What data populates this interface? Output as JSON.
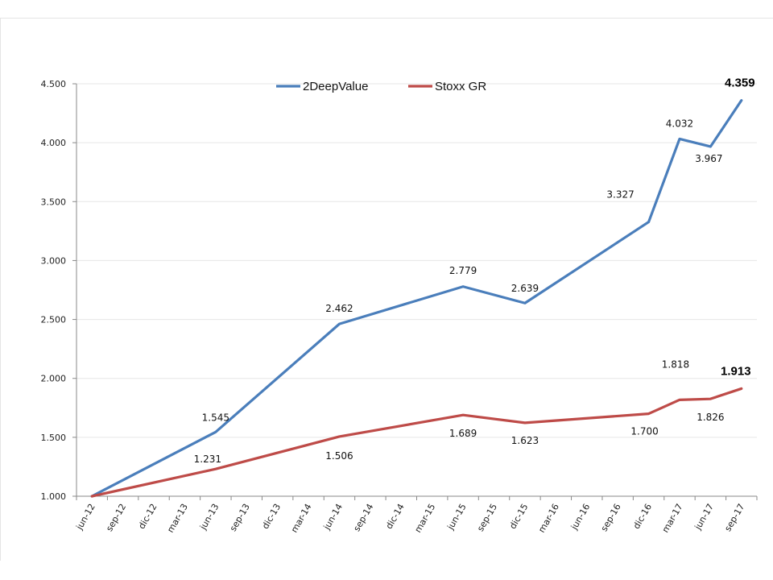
{
  "chart_data": {
    "type": "line",
    "x": [
      "jun-12",
      "sep-12",
      "dic-12",
      "mar-13",
      "jun-13",
      "sep-13",
      "dic-13",
      "mar-14",
      "jun-14",
      "sep-14",
      "dic-14",
      "mar-15",
      "jun-15",
      "sep-15",
      "dic-15",
      "mar-16",
      "jun-16",
      "sep-16",
      "dic-16",
      "mar-17",
      "jun-17",
      "sep-17"
    ],
    "ylim": [
      1.0,
      4.5
    ],
    "yticks": [
      1.0,
      1.5,
      2.0,
      2.5,
      3.0,
      3.5,
      4.0,
      4.5
    ],
    "ytick_labels": [
      "1.000",
      "1.500",
      "2.000",
      "2.500",
      "3.000",
      "3.500",
      "4.000",
      "4.500"
    ],
    "grid": true,
    "legend_position": "top-center",
    "series": [
      {
        "name": "2DeepValue",
        "color": "#4a7ebb",
        "points": [
          {
            "x": "jun-12",
            "y": 1.0
          },
          {
            "x": "jun-13",
            "y": 1.545,
            "label": "1.545"
          },
          {
            "x": "jun-14",
            "y": 2.462,
            "label": "2.462"
          },
          {
            "x": "jun-15",
            "y": 2.779,
            "label": "2.779"
          },
          {
            "x": "dic-15",
            "y": 2.639,
            "label": "2.639"
          },
          {
            "x": "dic-16",
            "y": 3.327,
            "label": "3.327"
          },
          {
            "x": "mar-17",
            "y": 4.032,
            "label": "4.032"
          },
          {
            "x": "jun-17",
            "y": 3.967,
            "label": "3.967"
          },
          {
            "x": "sep-17",
            "y": 4.359,
            "label": "4.359",
            "bold": true
          }
        ]
      },
      {
        "name": "Stoxx GR",
        "color": "#be4b48",
        "points": [
          {
            "x": "jun-12",
            "y": 1.0
          },
          {
            "x": "jun-13",
            "y": 1.231,
            "label": "1.231"
          },
          {
            "x": "jun-14",
            "y": 1.506,
            "label": "1.506"
          },
          {
            "x": "jun-15",
            "y": 1.689,
            "label": "1.689"
          },
          {
            "x": "dic-15",
            "y": 1.623,
            "label": "1.623"
          },
          {
            "x": "dic-16",
            "y": 1.7,
            "label": "1.700"
          },
          {
            "x": "mar-17",
            "y": 1.818,
            "label": "1.818"
          },
          {
            "x": "jun-17",
            "y": 1.826,
            "label": "1.826"
          },
          {
            "x": "sep-17",
            "y": 1.913,
            "label": "1.913",
            "bold": true
          }
        ]
      }
    ]
  }
}
